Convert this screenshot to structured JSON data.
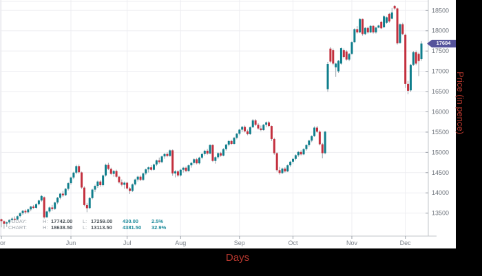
{
  "axis_titles": {
    "x": "Days",
    "y": "Price (in pence)"
  },
  "last_price": {
    "value": "17684"
  },
  "stats": {
    "today": {
      "label": "TODAY:",
      "h_label": "H:",
      "high": "17742.00",
      "l_label": "L:",
      "low": "17259.00",
      "change": "430.00",
      "pct": "2.5%"
    },
    "chart": {
      "label": "CHART:",
      "h_label": "H:",
      "high": "18638.50",
      "l_label": "L:",
      "low": "13113.50",
      "change": "4381.50",
      "pct": "32.9%"
    }
  },
  "colors": {
    "up": "#0f7e8c",
    "down": "#c3303e",
    "wick": "#9aa3ab",
    "grid": "#ededf1",
    "axis": "#c2c4c9",
    "tick": "#9aa0a8",
    "x_label": "#7b8189",
    "y_label": "#6f757d",
    "badge": "#55539b",
    "title": "#b5372e"
  },
  "chart_data": {
    "type": "candlestick",
    "title": "",
    "xlabel": "Days",
    "ylabel": "Price (in pence)",
    "grid": true,
    "y_axis": {
      "min": 12900,
      "max": 18760,
      "ticks": [
        13500,
        14000,
        14500,
        15000,
        15500,
        16000,
        16500,
        17000,
        17500,
        18000,
        18500
      ]
    },
    "x_axis": {
      "ticks": [
        {
          "label": "or",
          "index": 0,
          "anchor": "start"
        },
        {
          "label": "Jun",
          "index": 26,
          "anchor": "middle"
        },
        {
          "label": "Jul",
          "index": 47,
          "anchor": "middle"
        },
        {
          "label": "Aug",
          "index": 67,
          "anchor": "middle"
        },
        {
          "label": "Sep",
          "index": 89,
          "anchor": "middle"
        },
        {
          "label": "Oct",
          "index": 109,
          "anchor": "middle"
        },
        {
          "label": "Nov",
          "index": 131,
          "anchor": "middle"
        },
        {
          "label": "Dec",
          "index": 151,
          "anchor": "middle"
        }
      ]
    },
    "candles": [
      [
        13350,
        13365,
        13150,
        13303
      ],
      [
        13300,
        13320,
        13114,
        13240
      ],
      [
        13245,
        13295,
        13160,
        13272
      ],
      [
        13272,
        13350,
        13230,
        13330
      ],
      [
        13330,
        13400,
        13280,
        13365
      ],
      [
        13362,
        13420,
        13300,
        13340
      ],
      [
        13345,
        13442,
        13320,
        13422
      ],
      [
        13425,
        13520,
        13392,
        13500
      ],
      [
        13500,
        13580,
        13460,
        13558
      ],
      [
        13558,
        13592,
        13478,
        13520
      ],
      [
        13522,
        13612,
        13490,
        13592
      ],
      [
        13592,
        13680,
        13550,
        13662
      ],
      [
        13662,
        13702,
        13600,
        13630
      ],
      [
        13632,
        13742,
        13610,
        13722
      ],
      [
        13722,
        13832,
        13692,
        13812
      ],
      [
        13812,
        13952,
        13782,
        13922
      ],
      [
        13892,
        13912,
        13365,
        13396
      ],
      [
        13400,
        13562,
        13380,
        13540
      ],
      [
        13540,
        13662,
        13500,
        13640
      ],
      [
        13640,
        13702,
        13560,
        13600
      ],
      [
        13604,
        13782,
        13580,
        13762
      ],
      [
        13762,
        13902,
        13722,
        13880
      ],
      [
        13880,
        14002,
        13842,
        13980
      ],
      [
        13980,
        14052,
        13900,
        13940
      ],
      [
        13944,
        14122,
        13920,
        14100
      ],
      [
        14100,
        14262,
        14060,
        14240
      ],
      [
        14240,
        14402,
        14200,
        14380
      ],
      [
        14380,
        14522,
        14340,
        14500
      ],
      [
        14500,
        14692,
        14460,
        14660
      ],
      [
        14660,
        14700,
        14480,
        14510
      ],
      [
        14505,
        14525,
        14100,
        14132
      ],
      [
        14130,
        14162,
        13672,
        13700
      ],
      [
        13700,
        13752,
        13522,
        13622
      ],
      [
        13625,
        13902,
        13600,
        13872
      ],
      [
        13872,
        14102,
        13842,
        14080
      ],
      [
        14080,
        14202,
        14022,
        14172
      ],
      [
        14172,
        14302,
        14122,
        14280
      ],
      [
        14280,
        14312,
        14152,
        14190
      ],
      [
        14190,
        14452,
        14162,
        14430
      ],
      [
        14430,
        14722,
        14402,
        14690
      ],
      [
        14690,
        14742,
        14562,
        14592
      ],
      [
        14592,
        14622,
        14442,
        14470
      ],
      [
        14470,
        14562,
        14400,
        14540
      ],
      [
        14540,
        14572,
        14372,
        14400
      ],
      [
        14400,
        14422,
        14232,
        14260
      ],
      [
        14260,
        14332,
        14162,
        14200
      ],
      [
        14200,
        14282,
        14102,
        14250
      ],
      [
        14250,
        14272,
        14082,
        14110
      ],
      [
        14110,
        14142,
        13972,
        14050
      ],
      [
        14050,
        14232,
        14022,
        14210
      ],
      [
        14210,
        14352,
        14182,
        14330
      ],
      [
        14330,
        14422,
        14282,
        14400
      ],
      [
        14400,
        14432,
        14292,
        14320
      ],
      [
        14320,
        14502,
        14300,
        14480
      ],
      [
        14480,
        14602,
        14442,
        14580
      ],
      [
        14580,
        14652,
        14502,
        14630
      ],
      [
        14630,
        14682,
        14542,
        14570
      ],
      [
        14570,
        14722,
        14552,
        14700
      ],
      [
        14700,
        14822,
        14662,
        14800
      ],
      [
        14800,
        14872,
        14722,
        14760
      ],
      [
        14760,
        14922,
        14732,
        14900
      ],
      [
        14900,
        14982,
        14842,
        14960
      ],
      [
        14960,
        15002,
        14882,
        14910
      ],
      [
        14910,
        15072,
        14892,
        15050
      ],
      [
        15050,
        15072,
        14422,
        14480
      ],
      [
        14480,
        14562,
        14382,
        14530
      ],
      [
        14530,
        14562,
        14392,
        14430
      ],
      [
        14430,
        14592,
        14402,
        14570
      ],
      [
        14570,
        14642,
        14502,
        14620
      ],
      [
        14620,
        14652,
        14512,
        14540
      ],
      [
        14540,
        14702,
        14522,
        14680
      ],
      [
        14680,
        14762,
        14622,
        14740
      ],
      [
        14740,
        14852,
        14702,
        14830
      ],
      [
        14830,
        14862,
        14702,
        14730
      ],
      [
        14730,
        14892,
        14702,
        14870
      ],
      [
        14870,
        14982,
        14832,
        14960
      ],
      [
        14960,
        15062,
        14922,
        15040
      ],
      [
        15040,
        15082,
        14942,
        14970
      ],
      [
        14970,
        15202,
        14952,
        15180
      ],
      [
        15180,
        15202,
        14762,
        14790
      ],
      [
        14790,
        14902,
        14722,
        14880
      ],
      [
        14880,
        15002,
        14842,
        14980
      ],
      [
        14980,
        15012,
        14892,
        14920
      ],
      [
        14920,
        15102,
        14902,
        15080
      ],
      [
        15080,
        15212,
        15042,
        15190
      ],
      [
        15190,
        15302,
        15152,
        15280
      ],
      [
        15280,
        15312,
        15182,
        15210
      ],
      [
        15210,
        15382,
        15192,
        15360
      ],
      [
        15360,
        15482,
        15322,
        15460
      ],
      [
        15460,
        15582,
        15422,
        15560
      ],
      [
        15560,
        15652,
        15502,
        15630
      ],
      [
        15630,
        15662,
        15492,
        15520
      ],
      [
        15520,
        15562,
        15422,
        15450
      ],
      [
        15450,
        15642,
        15432,
        15620
      ],
      [
        15620,
        15822,
        15602,
        15790
      ],
      [
        15790,
        15822,
        15652,
        15680
      ],
      [
        15680,
        15722,
        15562,
        15590
      ],
      [
        15590,
        15662,
        15522,
        15550
      ],
      [
        15550,
        15702,
        15532,
        15680
      ],
      [
        15680,
        15762,
        15622,
        15740
      ],
      [
        15740,
        15772,
        15622,
        15650
      ],
      [
        15650,
        15662,
        15282,
        15330
      ],
      [
        15330,
        15362,
        14942,
        14980
      ],
      [
        14980,
        15002,
        14522,
        14560
      ],
      [
        14560,
        14642,
        14452,
        14490
      ],
      [
        14490,
        14622,
        14462,
        14600
      ],
      [
        14600,
        14632,
        14502,
        14530
      ],
      [
        14530,
        14702,
        14512,
        14680
      ],
      [
        14680,
        14792,
        14642,
        14770
      ],
      [
        14770,
        14862,
        14722,
        14840
      ],
      [
        14840,
        14952,
        14802,
        14930
      ],
      [
        14930,
        15032,
        14892,
        15010
      ],
      [
        15010,
        15052,
        14922,
        14950
      ],
      [
        14950,
        15102,
        14932,
        15080
      ],
      [
        15080,
        15202,
        15042,
        15180
      ],
      [
        15180,
        15312,
        15142,
        15290
      ],
      [
        15290,
        15422,
        15252,
        15400
      ],
      [
        15400,
        15642,
        15382,
        15610
      ],
      [
        15610,
        15652,
        15482,
        15510
      ],
      [
        15510,
        15542,
        15172,
        15200
      ],
      [
        15200,
        15232,
        14852,
        14980
      ],
      [
        14980,
        15532,
        14952,
        15510
      ],
      [
        16560,
        17232,
        16492,
        17180
      ],
      [
        17560,
        17602,
        17202,
        17240
      ],
      [
        17520,
        17562,
        17152,
        17190
      ],
      [
        17100,
        17212,
        16862,
        17190
      ],
      [
        17000,
        17282,
        16962,
        17260
      ],
      [
        17190,
        17592,
        17162,
        17570
      ],
      [
        17520,
        17562,
        17322,
        17350
      ],
      [
        17490,
        17522,
        17262,
        17290
      ],
      [
        17290,
        17452,
        17252,
        17430
      ],
      [
        17430,
        17742,
        17412,
        17720
      ],
      [
        17720,
        18062,
        17702,
        18040
      ],
      [
        18040,
        18112,
        17932,
        17960
      ],
      [
        17960,
        18312,
        17942,
        18290
      ],
      [
        18290,
        18302,
        17882,
        17920
      ],
      [
        17920,
        18092,
        17892,
        18070
      ],
      [
        18070,
        18102,
        17932,
        17960
      ],
      [
        17960,
        18142,
        17942,
        18120
      ],
      [
        18120,
        18142,
        17932,
        17960
      ],
      [
        17960,
        18102,
        17932,
        18080
      ],
      [
        18080,
        18152,
        18062,
        18130
      ],
      [
        18220,
        18242,
        18042,
        18060
      ],
      [
        18090,
        18382,
        18072,
        18360
      ],
      [
        18200,
        18352,
        18172,
        18330
      ],
      [
        18420,
        18442,
        18202,
        18230
      ],
      [
        18300,
        18562,
        18282,
        18450
      ],
      [
        18610,
        18639,
        18522,
        18550
      ],
      [
        18550,
        18572,
        17662,
        17690
      ],
      [
        17700,
        18182,
        17682,
        18160
      ],
      [
        18160,
        18202,
        17892,
        17920
      ],
      [
        17900,
        17932,
        16592,
        16690
      ],
      [
        16690,
        16762,
        16432,
        16520
      ],
      [
        16530,
        17182,
        16492,
        17160
      ],
      [
        17160,
        17502,
        17132,
        17470
      ],
      [
        17470,
        17512,
        17152,
        17190
      ],
      [
        17430,
        17462,
        16882,
        17254
      ],
      [
        17300,
        17742,
        17259,
        17684
      ]
    ]
  }
}
